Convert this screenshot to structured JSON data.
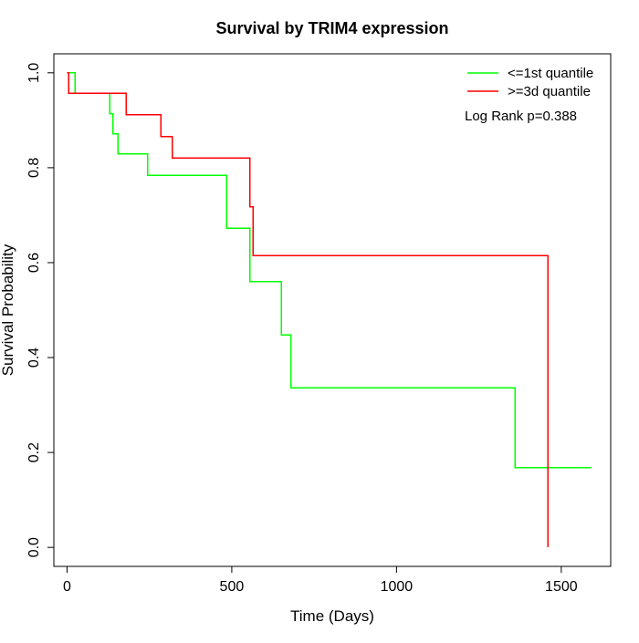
{
  "chart_data": {
    "type": "line",
    "title": "Survival by TRIM4 expression",
    "xlabel": "Time (Days)",
    "ylabel": "Survival Probability",
    "xlim": [
      -40,
      1650
    ],
    "ylim": [
      -0.04,
      1.04
    ],
    "x_ticks": [
      0,
      500,
      1000,
      1500
    ],
    "y_ticks": [
      0.0,
      0.2,
      0.4,
      0.6,
      0.8,
      1.0
    ],
    "x_tick_labels": [
      "0",
      "500",
      "1000",
      "1500"
    ],
    "y_tick_labels": [
      "0.0",
      "0.2",
      "0.4",
      "0.6",
      "0.8",
      "1.0"
    ],
    "grid": false,
    "legend_position": "top-right",
    "annotation": "Log Rank p=0.388",
    "series": [
      {
        "name": "<=1st quantile",
        "color": "#00ff00",
        "step": true,
        "x": [
          0,
          25,
          130,
          140,
          155,
          245,
          485,
          555,
          650,
          680,
          1360,
          1590
        ],
        "y": [
          1.0,
          0.957,
          0.914,
          0.871,
          0.829,
          0.784,
          0.672,
          0.56,
          0.448,
          0.336,
          0.168,
          0.168
        ]
      },
      {
        "name": ">=3d quantile",
        "color": "#ff0000",
        "step": true,
        "x": [
          0,
          5,
          180,
          285,
          320,
          555,
          565,
          1460,
          1460
        ],
        "y": [
          1.0,
          0.957,
          0.912,
          0.866,
          0.82,
          0.718,
          0.615,
          0.615,
          0.0
        ]
      }
    ]
  }
}
